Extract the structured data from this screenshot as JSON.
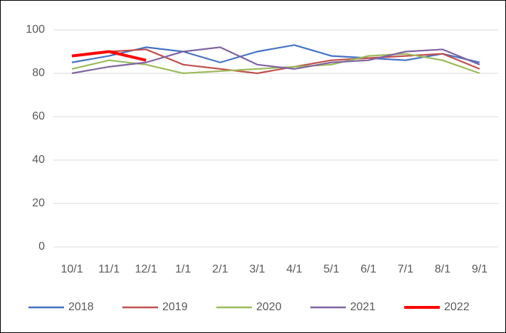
{
  "chart_data": {
    "type": "line",
    "categories": [
      "10/1",
      "11/1",
      "12/1",
      "1/1",
      "2/1",
      "3/1",
      "4/1",
      "5/1",
      "6/1",
      "7/1",
      "8/1",
      "9/1"
    ],
    "series": [
      {
        "name": "2018",
        "color": "#4472c4",
        "values": [
          85,
          88,
          92,
          90,
          85,
          90,
          93,
          88,
          87,
          86,
          89,
          85
        ]
      },
      {
        "name": "2019",
        "color": "#c0504d",
        "values": [
          88,
          90,
          91,
          84,
          82,
          80,
          83,
          86,
          87,
          88,
          89,
          82
        ]
      },
      {
        "name": "2020",
        "color": "#9bbb59",
        "values": [
          82,
          86,
          84,
          80,
          81,
          82,
          83,
          84,
          88,
          89,
          86,
          80
        ]
      },
      {
        "name": "2021",
        "color": "#8064a2",
        "values": [
          80,
          83,
          85,
          90,
          92,
          84,
          82,
          85,
          86,
          90,
          91,
          84
        ]
      },
      {
        "name": "2022",
        "color": "#ff0000",
        "values": [
          88,
          90,
          86,
          null,
          null,
          null,
          null,
          null,
          null,
          null,
          null,
          null
        ]
      }
    ],
    "ylim": [
      0,
      100
    ],
    "yticks": [
      0,
      20,
      40,
      60,
      80,
      100
    ],
    "grid": true
  }
}
